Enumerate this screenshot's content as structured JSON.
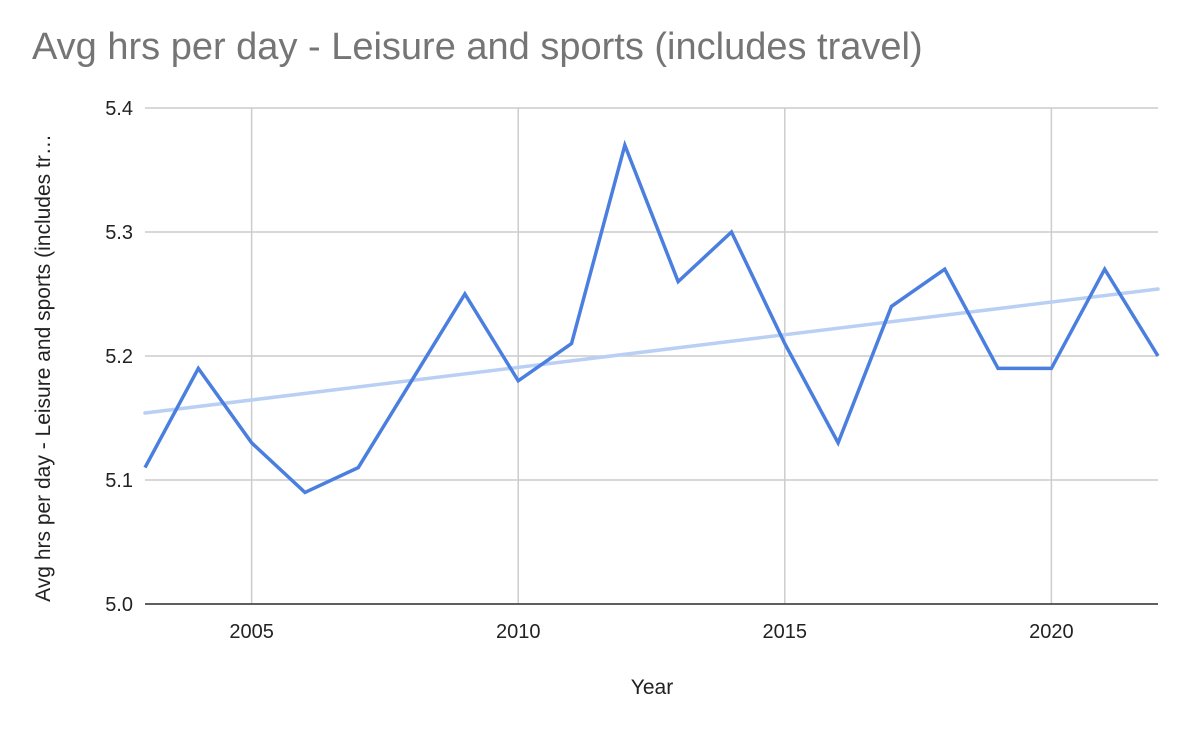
{
  "chart_data": {
    "type": "line",
    "title": "Avg hrs per day - Leisure and sports (includes travel)",
    "xlabel": "Year",
    "ylabel": "Avg hrs per day - Leisure and sports (includes tr…",
    "xlim": [
      2003,
      2022
    ],
    "ylim": [
      5.0,
      5.4
    ],
    "x_ticks": [
      2005,
      2010,
      2015,
      2020
    ],
    "x_tick_labels": [
      "2005",
      "2010",
      "2015",
      "2020"
    ],
    "y_ticks": [
      5.0,
      5.1,
      5.2,
      5.3,
      5.4
    ],
    "y_tick_labels": [
      "5.0",
      "5.1",
      "5.2",
      "5.3",
      "5.4"
    ],
    "grid": true,
    "legend": "none",
    "x": [
      2003,
      2004,
      2005,
      2006,
      2007,
      2008,
      2009,
      2010,
      2011,
      2012,
      2013,
      2014,
      2015,
      2016,
      2017,
      2018,
      2019,
      2020,
      2021,
      2022
    ],
    "series": [
      {
        "color": "#4a7fe0",
        "values": [
          5.11,
          5.19,
          5.13,
          5.09,
          5.11,
          5.18,
          5.25,
          5.18,
          5.21,
          5.37,
          5.26,
          5.3,
          5.21,
          5.13,
          5.24,
          5.27,
          5.19,
          5.19,
          5.27,
          5.2
        ]
      }
    ],
    "trendline": {
      "type": "linear",
      "color": "#b9cff4",
      "start": {
        "x": 2003,
        "y": 5.154
      },
      "end": {
        "x": 2022,
        "y": 5.254
      }
    },
    "colors": {
      "title": "#757575",
      "grid": "#cccccc",
      "axis_text": "#222222"
    }
  }
}
